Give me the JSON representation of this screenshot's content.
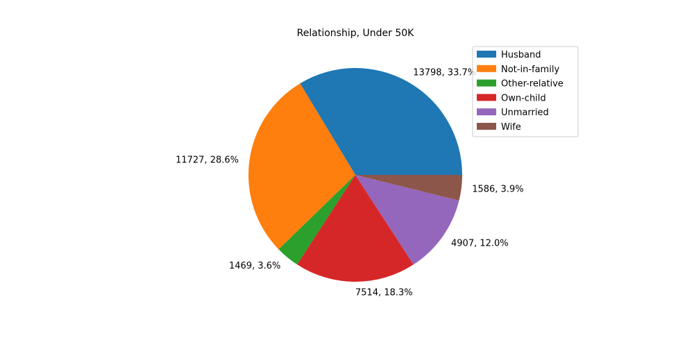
{
  "chart_data": {
    "type": "pie",
    "title": "Relationship, Under 50K",
    "start_angle_deg": 0,
    "direction": "counterclockwise",
    "legend_position": "top-right",
    "slices": [
      {
        "label": " Husband",
        "value": 13798,
        "percent": "33.7%",
        "text": "13798, 33.7%",
        "color": "#1f77b4"
      },
      {
        "label": " Not-in-family",
        "value": 11727,
        "percent": "28.6%",
        "text": "11727, 28.6%",
        "color": "#ff7f0e"
      },
      {
        "label": " Other-relative",
        "value": 1469,
        "percent": "3.6%",
        "text": "1469, 3.6%",
        "color": "#2ca02c"
      },
      {
        "label": " Own-child",
        "value": 7514,
        "percent": "18.3%",
        "text": "7514, 18.3%",
        "color": "#d62728"
      },
      {
        "label": " Unmarried",
        "value": 4907,
        "percent": "12.0%",
        "text": "4907, 12.0%",
        "color": "#9467bd"
      },
      {
        "label": " Wife",
        "value": 1586,
        "percent": "3.9%",
        "text": "1586, 3.9%",
        "color": "#8c564b"
      }
    ]
  }
}
